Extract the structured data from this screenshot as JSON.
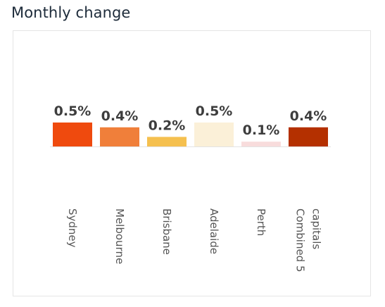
{
  "chart_data": {
    "type": "bar",
    "title": "Monthly change",
    "categories": [
      [
        "Sydney"
      ],
      [
        "Melbourne"
      ],
      [
        "Brisbane"
      ],
      [
        "Adelaide"
      ],
      [
        "Perth"
      ],
      [
        "Combined 5",
        "capitals"
      ]
    ],
    "values": [
      0.5,
      0.4,
      0.2,
      0.5,
      0.1,
      0.4
    ],
    "data_labels": [
      "0.5%",
      "0.4%",
      "0.2%",
      "0.5%",
      "0.1%",
      "0.4%"
    ],
    "colors": [
      "#ef4a0e",
      "#f07f3a",
      "#f5c04f",
      "#fbf0d8",
      "#f8dcdc",
      "#b43000"
    ],
    "ylim": [
      0,
      0.5
    ],
    "unit": "%",
    "grid": false,
    "legend": "none",
    "xlabel": "",
    "ylabel": ""
  }
}
